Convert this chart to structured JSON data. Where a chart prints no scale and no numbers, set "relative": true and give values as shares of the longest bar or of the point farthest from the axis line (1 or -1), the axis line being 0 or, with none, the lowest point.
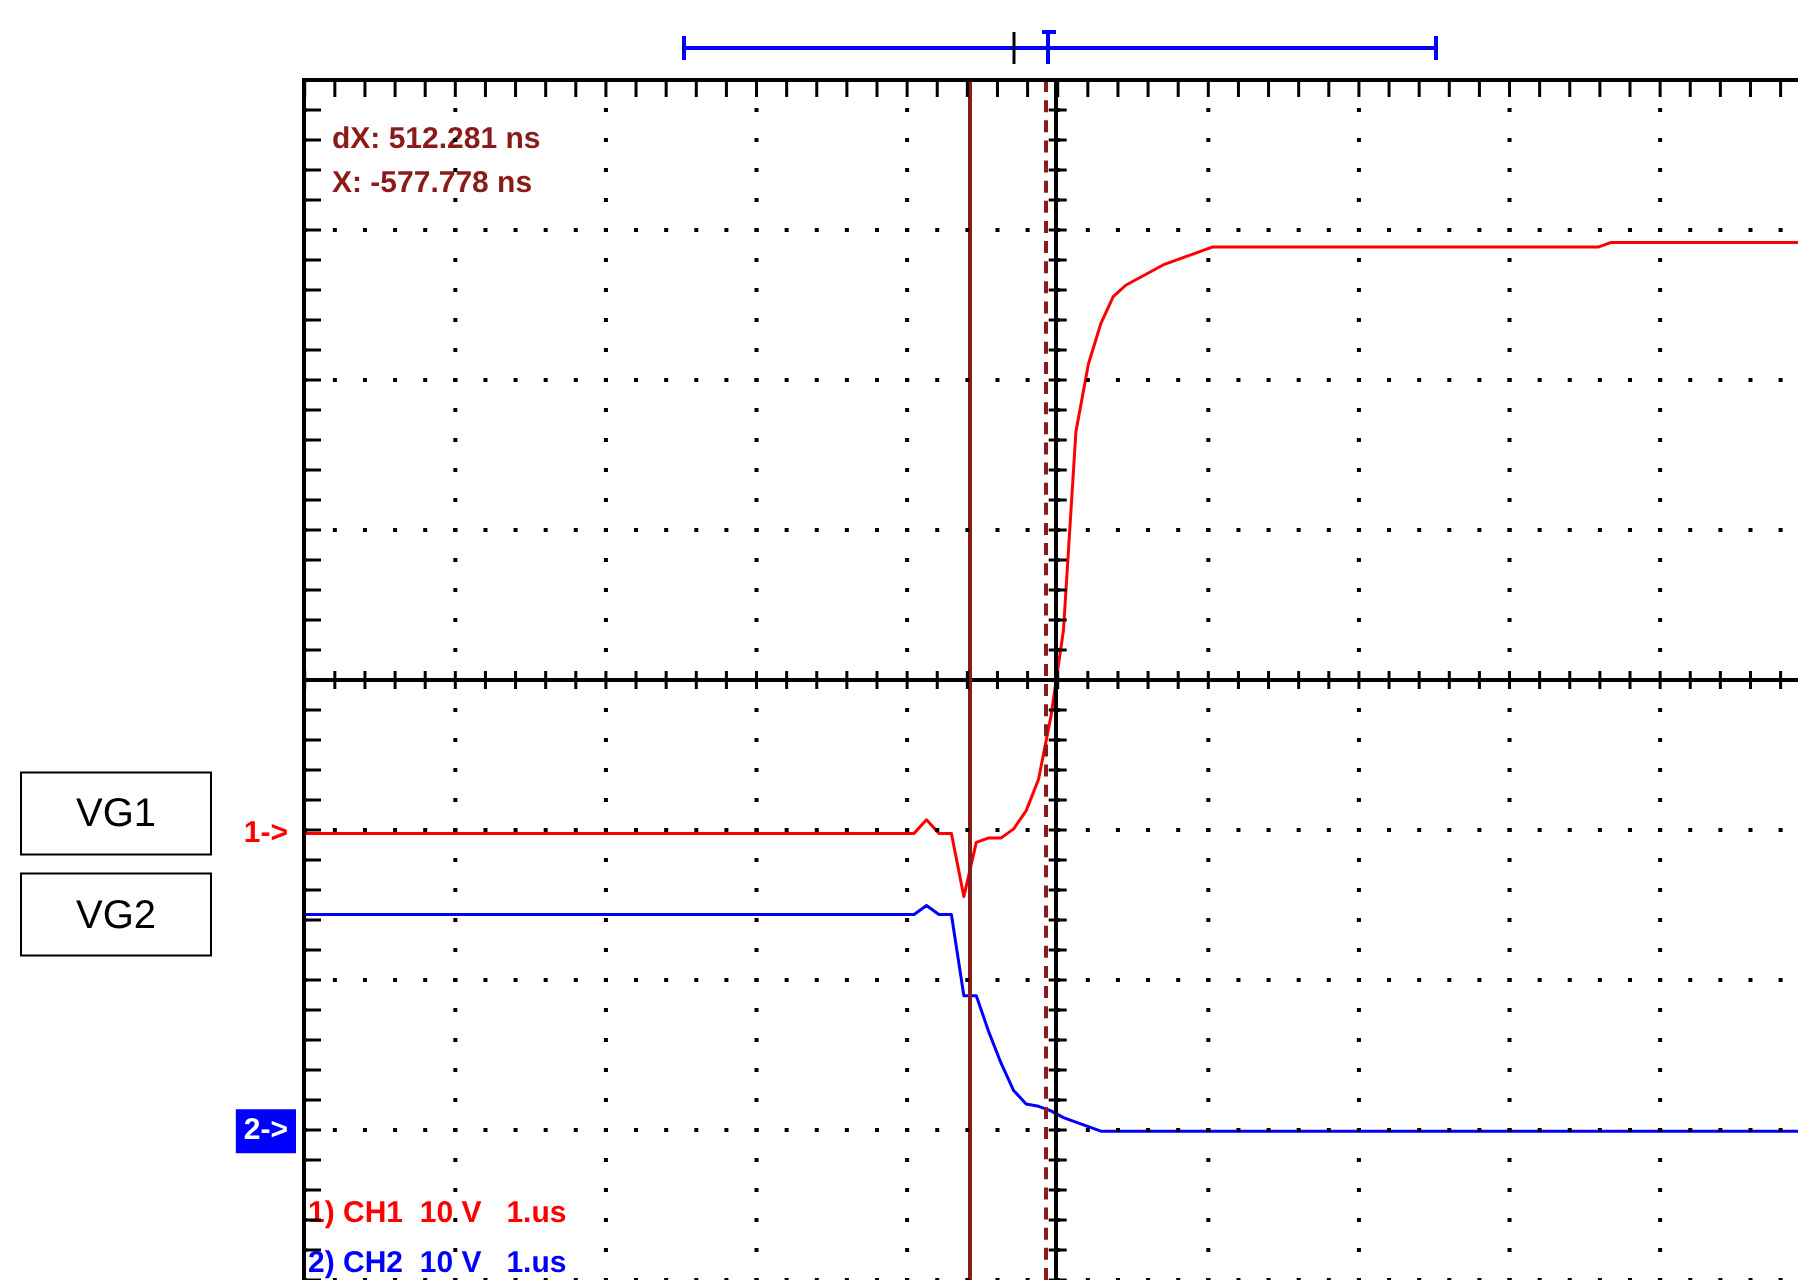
{
  "chart_data": {
    "type": "line",
    "relative": true,
    "categories": [
      null,
      null,
      null,
      null,
      null,
      null,
      null,
      null,
      null,
      null,
      null,
      null,
      null,
      null,
      null,
      null,
      null,
      null,
      null,
      null,
      null,
      null,
      null,
      null,
      null,
      null,
      null,
      null,
      null,
      null,
      null,
      null,
      null,
      null,
      null,
      null,
      null,
      null,
      null,
      null,
      null,
      null,
      null,
      null,
      null,
      null,
      null,
      null,
      null,
      null,
      null,
      null,
      null,
      null,
      null,
      null,
      null,
      null,
      null,
      null,
      null,
      null,
      null,
      null,
      null,
      null,
      null,
      null,
      null,
      null,
      null,
      null,
      null,
      null,
      null,
      null,
      null,
      null,
      null,
      null,
      null,
      null,
      null,
      null,
      null,
      null,
      null,
      null,
      null,
      null,
      null,
      null,
      null,
      null,
      null,
      null,
      null,
      null,
      null,
      null,
      null,
      null,
      null,
      null,
      null,
      null,
      null,
      null,
      null,
      null,
      null,
      null,
      null,
      null,
      null,
      null,
      null,
      null,
      null,
      null,
      null
    ],
    "marker": "none",
    "line_style": "solid",
    "series": [
      {
        "color": "#ff0000",
        "values": [
          -0.34,
          -0.34,
          -0.34,
          -0.34,
          -0.34,
          -0.34,
          -0.34,
          -0.34,
          -0.34,
          -0.34,
          -0.34,
          -0.34,
          -0.34,
          -0.34,
          -0.34,
          -0.34,
          -0.34,
          -0.34,
          -0.34,
          -0.34,
          -0.34,
          -0.34,
          -0.34,
          -0.34,
          -0.34,
          -0.34,
          -0.34,
          -0.34,
          -0.34,
          -0.34,
          -0.34,
          -0.34,
          -0.34,
          -0.34,
          -0.34,
          -0.34,
          -0.34,
          -0.34,
          -0.34,
          -0.34,
          -0.34,
          -0.34,
          -0.34,
          -0.34,
          -0.34,
          -0.34,
          -0.34,
          -0.34,
          -0.34,
          -0.34,
          -0.31,
          -0.34,
          -0.34,
          -0.48,
          -0.36,
          -0.35,
          -0.35,
          -0.33,
          -0.29,
          -0.22,
          -0.08,
          0.11,
          0.55,
          0.7,
          0.79,
          0.85,
          0.875,
          0.89,
          0.905,
          0.92,
          0.93,
          0.94,
          0.95,
          0.96,
          0.96,
          0.96,
          0.96,
          0.96,
          0.96,
          0.96,
          0.96,
          0.96,
          0.96,
          0.96,
          0.96,
          0.96,
          0.96,
          0.96,
          0.96,
          0.96,
          0.96,
          0.96,
          0.96,
          0.96,
          0.96,
          0.96,
          0.96,
          0.96,
          0.96,
          0.96,
          0.96,
          0.96,
          0.96,
          0.96,
          0.96,
          0.97,
          0.97,
          0.97,
          0.97,
          0.97,
          0.97,
          0.97,
          0.97,
          0.97,
          0.97,
          0.97,
          0.97,
          0.97,
          0.97,
          0.97,
          0.97
        ]
      },
      {
        "color": "#0000ff",
        "values": [
          -0.52,
          -0.52,
          -0.52,
          -0.52,
          -0.52,
          -0.52,
          -0.52,
          -0.52,
          -0.52,
          -0.52,
          -0.52,
          -0.52,
          -0.52,
          -0.52,
          -0.52,
          -0.52,
          -0.52,
          -0.52,
          -0.52,
          -0.52,
          -0.52,
          -0.52,
          -0.52,
          -0.52,
          -0.52,
          -0.52,
          -0.52,
          -0.52,
          -0.52,
          -0.52,
          -0.52,
          -0.52,
          -0.52,
          -0.52,
          -0.52,
          -0.52,
          -0.52,
          -0.52,
          -0.52,
          -0.52,
          -0.52,
          -0.52,
          -0.52,
          -0.52,
          -0.52,
          -0.52,
          -0.52,
          -0.52,
          -0.52,
          -0.52,
          -0.5,
          -0.52,
          -0.52,
          -0.7,
          -0.7,
          -0.78,
          -0.85,
          -0.91,
          -0.94,
          -0.945,
          -0.955,
          -0.97,
          -0.98,
          -0.99,
          -1,
          -1,
          -1,
          -1,
          -1,
          -1,
          -1,
          -1,
          -1,
          -1,
          -1,
          -1,
          -1,
          -1,
          -1,
          -1,
          -1,
          -1,
          -1,
          -1,
          -1,
          -1,
          -1,
          -1,
          -1,
          -1,
          -1,
          -1,
          -1,
          -1,
          -1,
          -1,
          -1,
          -1,
          -1,
          -1,
          -1,
          -1,
          -1,
          -1,
          -1,
          -1,
          -1,
          -1,
          -1,
          -1,
          -1,
          -1,
          -1,
          -1,
          -1,
          -1,
          -1,
          -1,
          -1,
          -1,
          -1
        ]
      }
    ],
    "annotations": [
      "VG1",
      "VG2",
      "1->",
      "2->",
      "dX: 512.281 ns",
      "X: -577.778 ns",
      "1) CH1  10 V   1.us",
      "2) CH2  10 V   1.us"
    ]
  }
}
